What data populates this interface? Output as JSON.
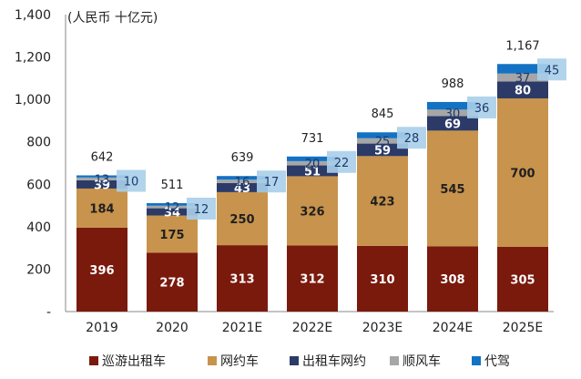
{
  "chart_data": {
    "type": "bar",
    "stacked": true,
    "unit_label": "(人民币 十亿元)",
    "categories": [
      "2019",
      "2020",
      "2021E",
      "2022E",
      "2023E",
      "2024E",
      "2025E"
    ],
    "series": [
      {
        "name": "巡游出租车",
        "values": [
          396,
          278,
          313,
          312,
          310,
          308,
          305
        ],
        "color": "#7a1a0c",
        "label_color": "#ffffff"
      },
      {
        "name": "网约车",
        "values": [
          184,
          175,
          250,
          326,
          423,
          545,
          700
        ],
        "color": "#c8934c",
        "label_color": "#1f1f1f"
      },
      {
        "name": "出租车网约",
        "values": [
          39,
          34,
          43,
          51,
          59,
          69,
          80
        ],
        "color": "#2b3a67",
        "label_color": "#ffffff"
      },
      {
        "name": "顺风车",
        "values": [
          13,
          12,
          16,
          20,
          25,
          30,
          37
        ],
        "color": "#a6a6a6",
        "label_color": "#1f1f1f"
      },
      {
        "name": "代驾",
        "values": [
          10,
          12,
          17,
          22,
          28,
          36,
          45
        ],
        "color": "#1372c4",
        "label_color": "#1f3a6b"
      }
    ],
    "totals": [
      "642",
      "511",
      "639",
      "731",
      "845",
      "988",
      "1,167"
    ],
    "ylim": [
      0,
      1400
    ],
    "yticks": [
      0,
      200,
      400,
      600,
      800,
      1000,
      1200,
      1400
    ],
    "ytick_labels": [
      "-",
      "200",
      "400",
      "600",
      "800",
      "1,000",
      "1,200",
      "1,400"
    ],
    "legend_position": "bottom",
    "callout_color": "#a9cfea"
  }
}
